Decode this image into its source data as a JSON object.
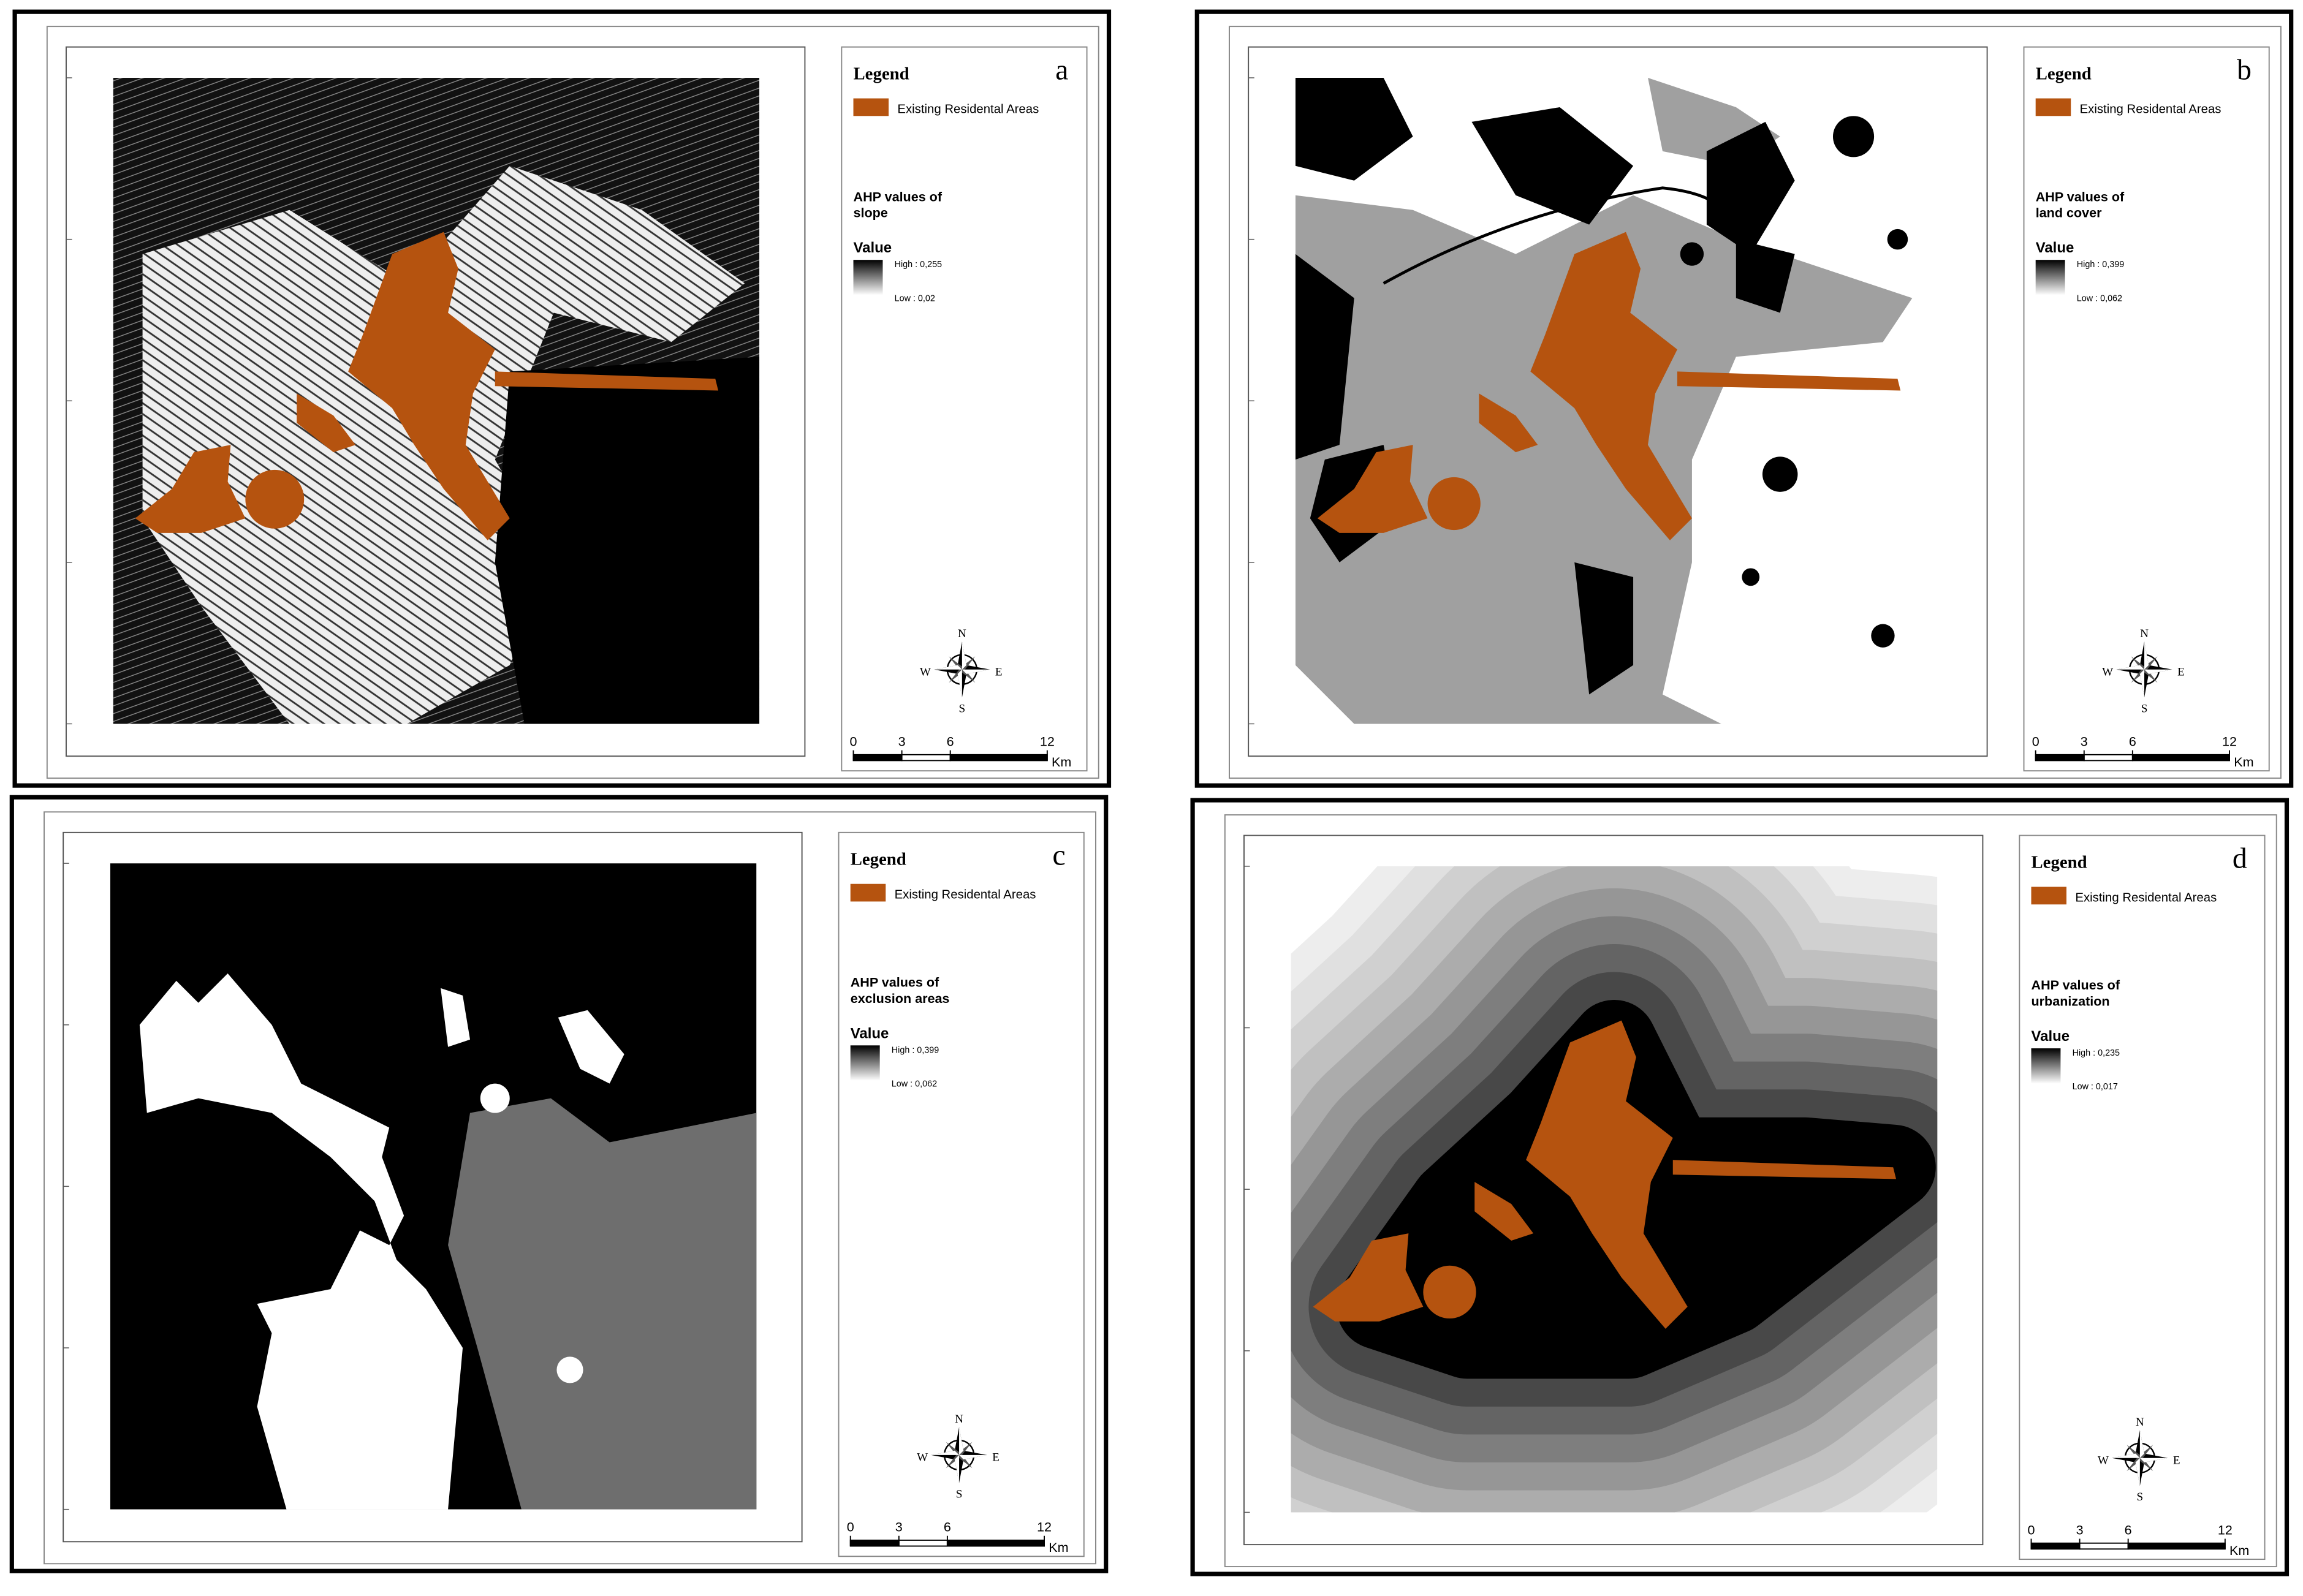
{
  "panels": [
    {
      "letter": "a",
      "legend_title": "Legend",
      "legend_item": "Existing Residental Areas",
      "layer_title": [
        "AHP values of",
        "slope"
      ],
      "value_title": "Value",
      "high": "High : 0,255",
      "low": "Low : 0,02",
      "compass": {
        "n": "N",
        "s": "S",
        "e": "E",
        "w": "W"
      },
      "scale": {
        "ticks": [
          0,
          3,
          6,
          12
        ],
        "unit": "Km"
      }
    },
    {
      "letter": "b",
      "legend_title": "Legend",
      "legend_item": "Existing Residental Areas",
      "layer_title": [
        "AHP values of",
        "land cover"
      ],
      "value_title": "Value",
      "high": "High : 0,399",
      "low": "Low : 0,062",
      "compass": {
        "n": "N",
        "s": "S",
        "e": "E",
        "w": "W"
      },
      "scale": {
        "ticks": [
          0,
          3,
          6,
          12
        ],
        "unit": "Km"
      }
    },
    {
      "letter": "c",
      "legend_title": "Legend",
      "legend_item": "Existing Residental Areas",
      "layer_title": [
        "AHP values of",
        "exclusion areas"
      ],
      "value_title": "Value",
      "high": "High : 0,399",
      "low": "Low : 0,062",
      "compass": {
        "n": "N",
        "s": "S",
        "e": "E",
        "w": "W"
      },
      "scale": {
        "ticks": [
          0,
          3,
          6,
          12
        ],
        "unit": "Km"
      }
    },
    {
      "letter": "d",
      "legend_title": "Legend",
      "legend_item": "Existing Residental Areas",
      "layer_title": [
        "AHP values of",
        "urbanization"
      ],
      "value_title": "Value",
      "high": "High : 0,235",
      "low": "Low : 0,017",
      "compass": {
        "n": "N",
        "s": "S",
        "e": "E",
        "w": "W"
      },
      "scale": {
        "ticks": [
          0,
          3,
          6,
          12
        ],
        "unit": "Km"
      }
    }
  ]
}
